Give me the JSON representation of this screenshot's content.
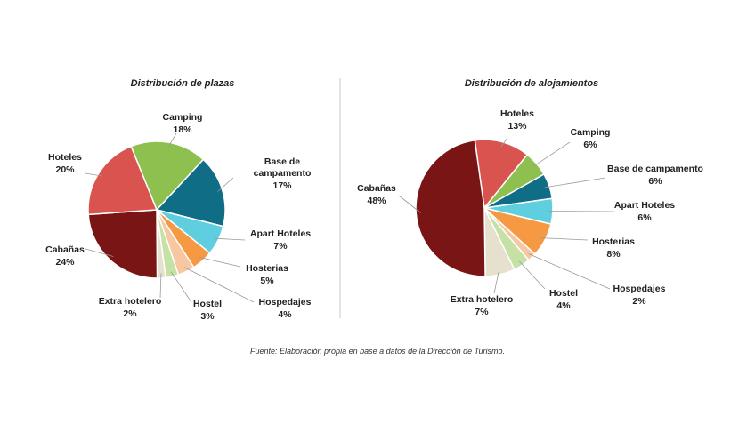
{
  "chart_data": [
    {
      "type": "pie",
      "title": "Distribución de plazas",
      "slices": [
        {
          "label": "Camping",
          "value": 18,
          "display": "18%",
          "color": "#8dc04f"
        },
        {
          "label": "Base de campamento",
          "value": 17,
          "display": "17%",
          "color": "#0f6e86"
        },
        {
          "label": "Apart Hoteles",
          "value": 7,
          "display": "7%",
          "color": "#5fcfe0"
        },
        {
          "label": "Hosterias",
          "value": 5,
          "display": "5%",
          "color": "#f59a43"
        },
        {
          "label": "Hospedajes",
          "value": 4,
          "display": "4%",
          "color": "#f6c7a1"
        },
        {
          "label": "Hostel",
          "value": 3,
          "display": "3%",
          "color": "#c6e1a5"
        },
        {
          "label": "Extra hotelero",
          "value": 2,
          "display": "2%",
          "color": "#e6e0cf"
        },
        {
          "label": "Cabañas",
          "value": 24,
          "display": "24%",
          "color": "#7a1515"
        },
        {
          "label": "Hoteles",
          "value": 20,
          "display": "20%",
          "color": "#d9534f"
        }
      ]
    },
    {
      "type": "pie",
      "title": "Distribución de alojamientos",
      "slices": [
        {
          "label": "Hoteles",
          "value": 13,
          "display": "13%",
          "color": "#d9534f"
        },
        {
          "label": "Camping",
          "value": 6,
          "display": "6%",
          "color": "#8dc04f"
        },
        {
          "label": "Base de campamento",
          "value": 6,
          "display": "6%",
          "color": "#0f6e86"
        },
        {
          "label": "Apart Hoteles",
          "value": 6,
          "display": "6%",
          "color": "#5fcfe0"
        },
        {
          "label": "Hosterias",
          "value": 8,
          "display": "8%",
          "color": "#f59a43"
        },
        {
          "label": "Hospedajes",
          "value": 2,
          "display": "2%",
          "color": "#f6c7a1"
        },
        {
          "label": "Hostel",
          "value": 4,
          "display": "4%",
          "color": "#c6e1a5"
        },
        {
          "label": "Extra hotelero",
          "value": 7,
          "display": "7%",
          "color": "#e6e0cf"
        },
        {
          "label": "Cabañas",
          "value": 48,
          "display": "48%",
          "color": "#7a1515"
        }
      ]
    }
  ],
  "source_note": "Fuente: Elaboración propia en base a datos de la Dirección de Turismo."
}
